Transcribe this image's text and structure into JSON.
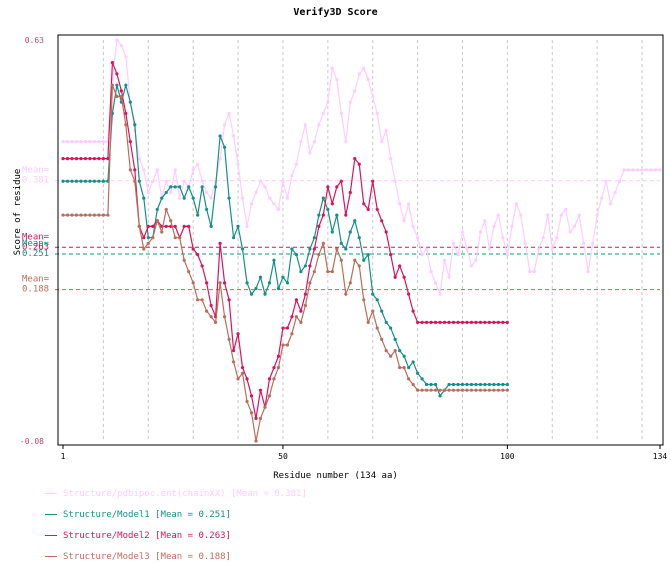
{
  "chart_data": {
    "type": "line",
    "title": "Verify3D Score",
    "xlabel": "Residue number (134 aa)",
    "ylabel": "Score of residue",
    "xlim": [
      1,
      134
    ],
    "ylim": [
      -0.08,
      0.63
    ],
    "x_ticks": [
      "1",
      "50",
      "100",
      "134"
    ],
    "y_ticks": [
      "0.63",
      "-0.08"
    ],
    "grid": "vertical dashed at every 10 residues",
    "series": [
      {
        "name": "Structure/pdbipoc.ent(chainXX)",
        "mean": 0.381,
        "mean_label": "Mean=\n0.381",
        "legend": "Structure/pdbipoc.ent(chainXX) [Mean = 0.381]",
        "color": "#ffccff",
        "x": [
          1,
          2,
          3,
          4,
          5,
          6,
          7,
          8,
          9,
          10,
          11,
          12,
          13,
          14,
          15,
          16,
          17,
          18,
          19,
          20,
          21,
          22,
          23,
          24,
          25,
          26,
          27,
          28,
          29,
          30,
          31,
          32,
          33,
          34,
          35,
          36,
          37,
          38,
          39,
          40,
          41,
          42,
          43,
          44,
          45,
          46,
          47,
          48,
          49,
          50,
          51,
          52,
          53,
          54,
          55,
          56,
          57,
          58,
          59,
          60,
          61,
          62,
          63,
          64,
          65,
          66,
          67,
          68,
          69,
          70,
          71,
          72,
          73,
          74,
          75,
          76,
          77,
          78,
          79,
          80,
          81,
          82,
          83,
          84,
          85,
          86,
          87,
          88,
          89,
          90,
          91,
          92,
          93,
          94,
          95,
          96,
          97,
          98,
          99,
          100,
          101,
          102,
          103,
          104,
          105,
          106,
          107,
          108,
          109,
          110,
          111,
          112,
          113,
          114,
          115,
          116,
          117,
          118,
          119,
          120,
          121,
          122,
          123,
          124,
          125,
          126,
          127,
          128,
          129,
          130,
          131,
          132,
          133,
          134
        ],
        "y": [
          0.45,
          0.45,
          0.45,
          0.45,
          0.45,
          0.45,
          0.45,
          0.45,
          0.45,
          0.45,
          0.45,
          0.56,
          0.63,
          0.62,
          0.6,
          0.52,
          0.47,
          0.42,
          0.4,
          0.36,
          0.38,
          0.4,
          0.35,
          0.38,
          0.36,
          0.4,
          0.35,
          0.38,
          0.37,
          0.4,
          0.41,
          0.38,
          0.36,
          0.35,
          0.38,
          0.42,
          0.48,
          0.5,
          0.46,
          0.41,
          0.35,
          0.3,
          0.34,
          0.36,
          0.38,
          0.37,
          0.35,
          0.34,
          0.33,
          0.38,
          0.35,
          0.39,
          0.41,
          0.45,
          0.48,
          0.43,
          0.45,
          0.48,
          0.5,
          0.52,
          0.58,
          0.56,
          0.5,
          0.45,
          0.52,
          0.54,
          0.57,
          0.58,
          0.56,
          0.53,
          0.5,
          0.45,
          0.47,
          0.42,
          0.38,
          0.34,
          0.31,
          0.34,
          0.3,
          0.28,
          0.25,
          0.26,
          0.22,
          0.2,
          0.18,
          0.24,
          0.21,
          0.27,
          0.25,
          0.29,
          0.26,
          0.23,
          0.24,
          0.29,
          0.31,
          0.26,
          0.3,
          0.32,
          0.28,
          0.25,
          0.3,
          0.34,
          0.32,
          0.27,
          0.22,
          0.22,
          0.26,
          0.28,
          0.32,
          0.26,
          0.28,
          0.32,
          0.33,
          0.29,
          0.3,
          0.32,
          0.27,
          0.22,
          0.27,
          0.32,
          0.35,
          0.38,
          0.34,
          0.36,
          0.38,
          0.4,
          0.4,
          0.4,
          0.4,
          0.4,
          0.4,
          0.4,
          0.4,
          0.4
        ]
      },
      {
        "name": "Structure/Model1",
        "mean": 0.251,
        "mean_label": "Mean=\n0.251",
        "legend": "Structure/Model1 [Mean = 0.251]",
        "color": "#149184",
        "x": [
          1,
          2,
          3,
          4,
          5,
          6,
          7,
          8,
          9,
          10,
          11,
          12,
          13,
          14,
          15,
          16,
          17,
          18,
          19,
          20,
          21,
          22,
          23,
          24,
          25,
          26,
          27,
          28,
          29,
          30,
          31,
          32,
          33,
          34,
          35,
          36,
          37,
          38,
          39,
          40,
          41,
          42,
          43,
          44,
          45,
          46,
          47,
          48,
          49,
          50,
          51,
          52,
          53,
          54,
          55,
          56,
          57,
          58,
          59,
          60,
          61,
          62,
          63,
          64,
          65,
          66,
          67,
          68,
          69,
          70,
          71,
          72,
          73,
          74,
          75,
          76,
          77,
          78,
          79,
          80,
          81,
          82,
          83,
          84,
          85,
          86,
          87,
          88,
          89,
          90,
          91,
          92,
          93,
          94,
          95,
          96,
          97,
          98,
          99,
          100
        ],
        "y": [
          0.38,
          0.38,
          0.38,
          0.38,
          0.38,
          0.38,
          0.38,
          0.38,
          0.38,
          0.38,
          0.38,
          0.5,
          0.55,
          0.52,
          0.55,
          0.52,
          0.48,
          0.38,
          0.35,
          0.28,
          0.28,
          0.33,
          0.35,
          0.36,
          0.37,
          0.37,
          0.37,
          0.35,
          0.37,
          0.35,
          0.32,
          0.37,
          0.33,
          0.3,
          0.37,
          0.46,
          0.44,
          0.35,
          0.28,
          0.3,
          0.26,
          0.2,
          0.18,
          0.19,
          0.21,
          0.18,
          0.2,
          0.24,
          0.19,
          0.21,
          0.2,
          0.26,
          0.25,
          0.22,
          0.23,
          0.26,
          0.28,
          0.32,
          0.35,
          0.33,
          0.29,
          0.32,
          0.27,
          0.26,
          0.29,
          0.31,
          0.28,
          0.24,
          0.25,
          0.18,
          0.17,
          0.15,
          0.13,
          0.12,
          0.1,
          0.08,
          0.07,
          0.05,
          0.06,
          0.04,
          0.03,
          0.02,
          0.02,
          0.02,
          0.0,
          0.01,
          0.02,
          0.02,
          0.02,
          0.02,
          0.02,
          0.02,
          0.02,
          0.02,
          0.02,
          0.02,
          0.02,
          0.02,
          0.02,
          0.02
        ]
      },
      {
        "name": "Structure/Model2",
        "mean": 0.263,
        "mean_label": "Mean=\n0.263",
        "legend": "Structure/Model2 [Mean = 0.263]",
        "color": "#d8145c",
        "x": [
          1,
          2,
          3,
          4,
          5,
          6,
          7,
          8,
          9,
          10,
          11,
          12,
          13,
          14,
          15,
          16,
          17,
          18,
          19,
          20,
          21,
          22,
          23,
          24,
          25,
          26,
          27,
          28,
          29,
          30,
          31,
          32,
          33,
          34,
          35,
          36,
          37,
          38,
          39,
          40,
          41,
          42,
          43,
          44,
          45,
          46,
          47,
          48,
          49,
          50,
          51,
          52,
          53,
          54,
          55,
          56,
          57,
          58,
          59,
          60,
          61,
          62,
          63,
          64,
          65,
          66,
          67,
          68,
          69,
          70,
          71,
          72,
          73,
          74,
          75,
          76,
          77,
          78,
          79,
          80,
          81,
          82,
          83,
          84,
          85,
          86,
          87,
          88,
          89,
          90,
          91,
          92,
          93,
          94,
          95,
          96,
          97,
          98,
          99,
          100
        ],
        "y": [
          0.42,
          0.42,
          0.42,
          0.42,
          0.42,
          0.42,
          0.42,
          0.42,
          0.42,
          0.42,
          0.42,
          0.59,
          0.57,
          0.54,
          0.5,
          0.45,
          0.4,
          0.3,
          0.28,
          0.3,
          0.3,
          0.31,
          0.3,
          0.3,
          0.3,
          0.3,
          0.28,
          0.3,
          0.3,
          0.26,
          0.25,
          0.23,
          0.2,
          0.16,
          0.14,
          0.27,
          0.2,
          0.17,
          0.08,
          0.11,
          0.05,
          0.03,
          0.0,
          -0.04,
          0.01,
          -0.02,
          0.03,
          0.05,
          0.07,
          0.12,
          0.12,
          0.14,
          0.17,
          0.15,
          0.18,
          0.23,
          0.26,
          0.3,
          0.32,
          0.37,
          0.34,
          0.37,
          0.38,
          0.32,
          0.36,
          0.42,
          0.41,
          0.34,
          0.33,
          0.38,
          0.33,
          0.31,
          0.29,
          0.25,
          0.21,
          0.23,
          0.21,
          0.18,
          0.15,
          0.13,
          0.13,
          0.13,
          0.13,
          0.13,
          0.13,
          0.13,
          0.13,
          0.13,
          0.13,
          0.13,
          0.13,
          0.13,
          0.13,
          0.13,
          0.13,
          0.13,
          0.13,
          0.13,
          0.13,
          0.13
        ]
      },
      {
        "name": "Structure/Model3",
        "mean": 0.188,
        "mean_label": "Mean=\n0.188",
        "legend": "Structure/Model3 [Mean = 0.188]",
        "color": "#b86e5c",
        "x": [
          1,
          2,
          3,
          4,
          5,
          6,
          7,
          8,
          9,
          10,
          11,
          12,
          13,
          14,
          15,
          16,
          17,
          18,
          19,
          20,
          21,
          22,
          23,
          24,
          25,
          26,
          27,
          28,
          29,
          30,
          31,
          32,
          33,
          34,
          35,
          36,
          37,
          38,
          39,
          40,
          41,
          42,
          43,
          44,
          45,
          46,
          47,
          48,
          49,
          50,
          51,
          52,
          53,
          54,
          55,
          56,
          57,
          58,
          59,
          60,
          61,
          62,
          63,
          64,
          65,
          66,
          67,
          68,
          69,
          70,
          71,
          72,
          73,
          74,
          75,
          76,
          77,
          78,
          79,
          80,
          81,
          82,
          83,
          84,
          85,
          86,
          87,
          88,
          89,
          90,
          91,
          92,
          93,
          94,
          95,
          96,
          97,
          98,
          99,
          100
        ],
        "y": [
          0.32,
          0.32,
          0.32,
          0.32,
          0.32,
          0.32,
          0.32,
          0.32,
          0.32,
          0.32,
          0.32,
          0.55,
          0.53,
          0.53,
          0.48,
          0.4,
          0.38,
          0.3,
          0.26,
          0.27,
          0.28,
          0.31,
          0.29,
          0.33,
          0.31,
          0.28,
          0.28,
          0.24,
          0.22,
          0.2,
          0.17,
          0.17,
          0.15,
          0.14,
          0.13,
          0.2,
          0.14,
          0.1,
          0.06,
          0.03,
          0.04,
          -0.01,
          -0.03,
          -0.08,
          -0.04,
          -0.02,
          0.0,
          0.03,
          0.05,
          0.09,
          0.09,
          0.11,
          0.14,
          0.13,
          0.16,
          0.2,
          0.22,
          0.25,
          0.27,
          0.22,
          0.22,
          0.26,
          0.24,
          0.18,
          0.2,
          0.24,
          0.23,
          0.17,
          0.13,
          0.15,
          0.12,
          0.1,
          0.08,
          0.07,
          0.08,
          0.05,
          0.05,
          0.03,
          0.02,
          0.01,
          0.01,
          0.01,
          0.01,
          0.01,
          0.01,
          0.01,
          0.01,
          0.01,
          0.01,
          0.01,
          0.01,
          0.01,
          0.01,
          0.01,
          0.01,
          0.01,
          0.01,
          0.01,
          0.01,
          0.01
        ]
      }
    ]
  }
}
